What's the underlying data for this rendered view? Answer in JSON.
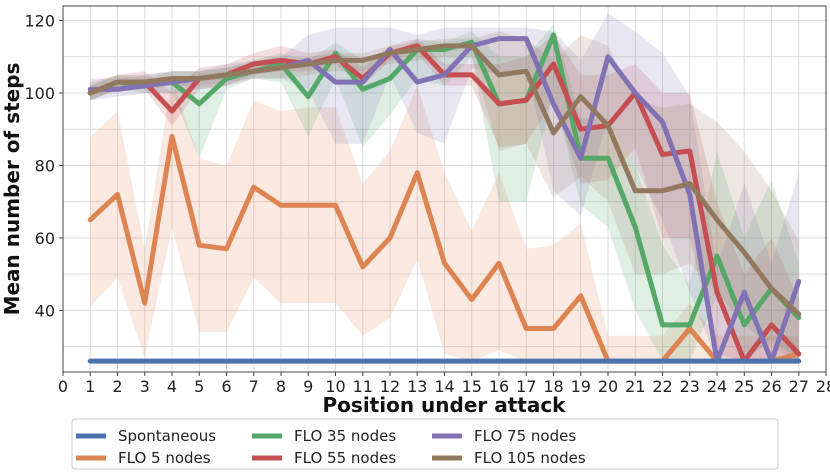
{
  "chart_data": {
    "type": "line",
    "xlabel": "Position under attack",
    "ylabel": "Mean number of steps",
    "xlim": [
      0,
      28
    ],
    "ylim": [
      23,
      124
    ],
    "xticks": [
      0,
      1,
      2,
      3,
      4,
      5,
      6,
      7,
      8,
      9,
      10,
      11,
      12,
      13,
      14,
      15,
      16,
      17,
      18,
      19,
      20,
      21,
      22,
      23,
      24,
      25,
      26,
      27,
      28
    ],
    "yticks": [
      40,
      60,
      80,
      100,
      120
    ],
    "grid": true,
    "legend_position": "bottom",
    "x": [
      1,
      2,
      3,
      4,
      5,
      6,
      7,
      8,
      9,
      10,
      11,
      12,
      13,
      14,
      15,
      16,
      17,
      18,
      19,
      20,
      21,
      22,
      23,
      24,
      25,
      26,
      27
    ],
    "series": [
      {
        "name": "Spontaneous",
        "color": "#4c72b0",
        "values": [
          26,
          26,
          26,
          26,
          26,
          26,
          26,
          26,
          26,
          26,
          26,
          26,
          26,
          26,
          26,
          26,
          26,
          26,
          26,
          26,
          26,
          26,
          26,
          26,
          26,
          26,
          26
        ]
      },
      {
        "name": "FLO 5 nodes",
        "color": "#dd8452",
        "values": [
          65,
          72,
          42,
          88,
          58,
          57,
          74,
          69,
          69,
          69,
          52,
          60,
          78,
          53,
          43,
          53,
          35,
          35,
          44,
          26,
          26,
          26,
          35,
          26,
          26,
          26,
          28
        ],
        "band_lower": [
          41,
          49,
          27,
          63,
          34,
          34,
          49,
          42,
          42,
          42,
          33,
          38,
          54,
          28,
          26,
          29,
          26,
          26,
          26,
          26,
          26,
          26,
          26,
          26,
          26,
          26,
          26
        ],
        "band_upper": [
          88,
          95,
          57,
          104,
          82,
          80,
          98,
          95,
          96,
          96,
          75,
          84,
          102,
          78,
          62,
          78,
          57,
          58,
          64,
          33,
          33,
          33,
          42,
          33,
          33,
          33,
          33
        ]
      },
      {
        "name": "FLO 35 nodes",
        "color": "#55a868",
        "values": [
          100,
          103,
          102,
          103,
          97,
          104,
          106,
          108,
          99,
          111,
          101,
          104,
          112,
          112,
          114,
          97,
          98,
          116,
          82,
          82,
          63,
          36,
          36,
          55,
          36,
          46,
          38
        ],
        "band_lower": [
          98,
          101,
          100,
          100,
          82,
          101,
          104,
          103,
          88,
          104,
          85,
          94,
          104,
          102,
          110,
          70,
          70,
          100,
          69,
          63,
          40,
          26,
          26,
          44,
          26,
          32,
          26
        ],
        "band_upper": [
          102,
          105,
          104,
          106,
          106,
          107,
          109,
          111,
          109,
          114,
          109,
          110,
          115,
          114,
          117,
          110,
          110,
          119,
          93,
          93,
          80,
          58,
          47,
          84,
          60,
          76,
          53
        ]
      },
      {
        "name": "FLO 55 nodes",
        "color": "#c44e52",
        "values": [
          100,
          103,
          103,
          95,
          104,
          105,
          108,
          109,
          108,
          110,
          104,
          111,
          113,
          105,
          105,
          97,
          98,
          108,
          90,
          91,
          100,
          83,
          84,
          45,
          26,
          36,
          28
        ],
        "band_lower": [
          98,
          101,
          101,
          91,
          101,
          102,
          105,
          106,
          106,
          108,
          102,
          109,
          111,
          102,
          102,
          85,
          86,
          98,
          75,
          76,
          85,
          60,
          60,
          28,
          26,
          26,
          26
        ],
        "band_upper": [
          103,
          105,
          106,
          100,
          107,
          108,
          111,
          113,
          111,
          112,
          107,
          113,
          115,
          108,
          108,
          108,
          110,
          116,
          105,
          105,
          108,
          100,
          100,
          70,
          50,
          60,
          43
        ]
      },
      {
        "name": "FLO 75 nodes",
        "color": "#8172b3",
        "values": [
          101,
          101,
          102,
          103,
          104,
          105,
          106,
          107,
          109,
          103,
          103,
          112,
          103,
          105,
          113,
          115,
          115,
          97,
          82,
          110,
          100,
          92,
          72,
          26,
          45,
          26,
          48
        ],
        "band_lower": [
          98,
          99,
          100,
          100,
          101,
          102,
          104,
          104,
          101,
          86,
          86,
          105,
          89,
          86,
          107,
          105,
          107,
          73,
          66,
          93,
          80,
          65,
          45,
          26,
          26,
          26,
          26
        ],
        "band_upper": [
          104,
          104,
          105,
          106,
          106,
          108,
          109,
          110,
          116,
          118,
          118,
          118,
          116,
          118,
          118,
          118,
          118,
          117,
          109,
          122,
          117,
          111,
          99,
          52,
          75,
          53,
          78
        ]
      },
      {
        "name": "FLO 105 nodes",
        "color": "#937860",
        "values": [
          100,
          103,
          103,
          104,
          104,
          105,
          106,
          107,
          108,
          109,
          109,
          111,
          112,
          113,
          113,
          105,
          106,
          89,
          99,
          91,
          73,
          73,
          75,
          65,
          56,
          46,
          39
        ],
        "band_lower": [
          98,
          101,
          101,
          102,
          102,
          103,
          104,
          104,
          105,
          106,
          106,
          108,
          109,
          110,
          110,
          84,
          86,
          71,
          77,
          70,
          50,
          50,
          53,
          45,
          36,
          30,
          26
        ],
        "band_upper": [
          102,
          105,
          105,
          106,
          106,
          107,
          108,
          109,
          110,
          111,
          111,
          113,
          114,
          115,
          115,
          117,
          115,
          109,
          116,
          113,
          98,
          96,
          97,
          92,
          84,
          73,
          59
        ]
      }
    ]
  }
}
